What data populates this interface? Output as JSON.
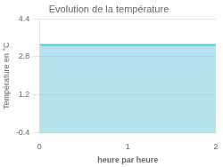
{
  "chart_data": {
    "type": "area",
    "title": "Evolution de la température",
    "xlabel": "heure par heure",
    "ylabel": "Température en °C",
    "x": [
      0,
      2
    ],
    "values": [
      3.3,
      3.3
    ],
    "color": "#44b8d8",
    "xlim": [
      0,
      2
    ],
    "ylim": [
      -0.4,
      4.4
    ],
    "xticks": [
      0,
      1,
      2
    ],
    "yticks": [
      -0.4,
      1.2,
      2.8,
      4.4
    ],
    "grid": "y"
  }
}
